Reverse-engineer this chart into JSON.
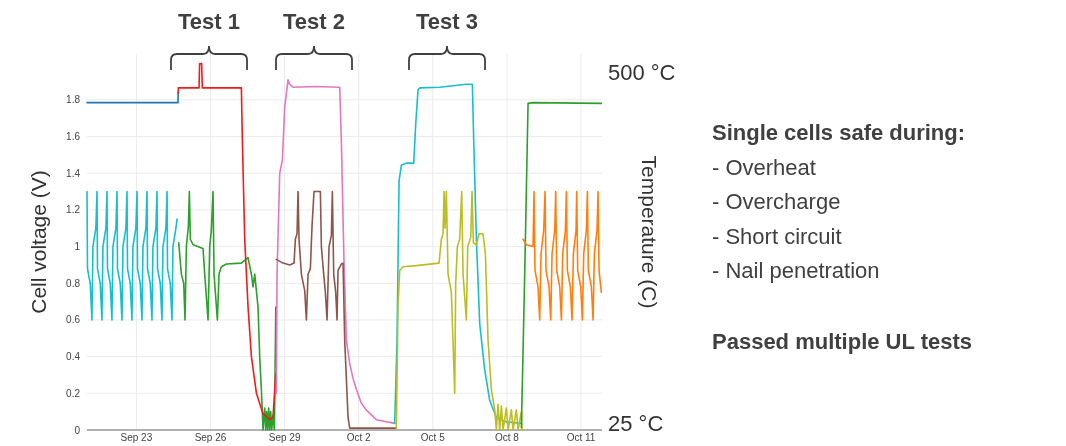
{
  "chart_data": {
    "type": "line",
    "ylabel": "Cell voltage (V)",
    "y2label": "Temperature (C)",
    "xlim": [
      "--09-21",
      "--10-11T20:24"
    ],
    "xticks": [
      {
        "value": "--09-23",
        "label": "Sep 23"
      },
      {
        "value": "--09-26",
        "label": "Sep 26"
      },
      {
        "value": "--09-29",
        "label": "Sep 29"
      },
      {
        "value": "--10-02",
        "label": "Oct 2"
      },
      {
        "value": "--10-05",
        "label": "Oct 5"
      },
      {
        "value": "--10-08",
        "label": "Oct 8"
      },
      {
        "value": "--10-11",
        "label": "Oct 11"
      }
    ],
    "ylim": [
      0,
      2.05
    ],
    "yticks": [
      0,
      0.2,
      0.4,
      0.6,
      0.8,
      1,
      1.2,
      1.4,
      1.6,
      1.8
    ],
    "y2lim": [
      15,
      525
    ],
    "y2ticks": [
      {
        "value": 500,
        "label": "500 °C"
      },
      {
        "value": 25,
        "label": "25 °C"
      }
    ],
    "grid": true,
    "series": [
      {
        "color": "#17becf",
        "x": [
          "--09-21T00:00",
          "--09-21T00:29",
          "--09-21T03:07",
          "--09-21T04:48",
          "--09-21T05:46",
          "--09-21T08:38",
          "--09-21T09:43",
          "--09-21T10:12",
          "--09-21T12:50",
          "--09-21T14:31",
          "--09-21T15:29",
          "--09-21T18:22",
          "--09-21T19:26",
          "--09-21T19:55",
          "--09-21T22:34",
          "--09-22T00:14",
          "--09-22T01:12",
          "--09-22T04:05",
          "--09-22T05:10",
          "--09-22T05:38",
          "--09-22T08:17",
          "--09-22T09:58",
          "--09-22T10:55",
          "--09-22T13:48",
          "--09-22T14:53",
          "--09-22T15:22",
          "--09-22T18:00",
          "--09-22T19:41",
          "--09-22T20:38",
          "--09-22T23:31",
          "--09-23T00:36",
          "--09-23T01:05",
          "--09-23T03:43",
          "--09-23T05:24",
          "--09-23T06:22",
          "--09-23T09:14",
          "--09-23T10:19",
          "--09-23T10:48",
          "--09-23T13:26",
          "--09-23T15:07",
          "--09-23T16:05",
          "--09-23T18:58",
          "--09-23T20:02",
          "--09-23T20:31",
          "--09-23T23:10",
          "--09-24T00:50",
          "--09-24T01:48",
          "--09-24T04:41",
          "--09-24T05:46",
          "--09-24T06:14",
          "--09-24T08:53",
          "--09-24T10:34",
          "--09-24T11:31",
          "--09-24T14:24",
          "--09-24T15:29"
        ],
        "values": [
          1.3,
          0.88,
          0.8,
          0.6,
          1.0,
          1.1,
          1.3,
          0.88,
          0.8,
          0.6,
          1.0,
          1.1,
          1.3,
          0.88,
          0.8,
          0.6,
          1.0,
          1.1,
          1.3,
          0.88,
          0.8,
          0.6,
          1.0,
          1.1,
          1.3,
          0.88,
          0.8,
          0.6,
          1.0,
          1.1,
          1.3,
          0.88,
          0.8,
          0.6,
          1.0,
          1.1,
          1.3,
          0.88,
          0.8,
          0.6,
          1.0,
          1.1,
          1.3,
          0.88,
          0.8,
          0.6,
          1.0,
          1.1,
          1.3,
          0.88,
          0.8,
          0.6,
          1.0,
          1.1,
          1.15
        ]
      },
      {
        "color": "#2ca02c",
        "x": [
          "--09-24T17:07",
          "--09-24T19:42",
          "--09-24T21:58",
          "--09-24T23:15",
          "--09-25T00:33",
          "--09-25T02:30",
          "--09-25T03:27",
          "--09-25T04:26",
          "--09-25T07:02",
          "--09-25T16:45",
          "--09-25T18:22",
          "--09-25T21:36",
          "--09-25T23:14",
          "--09-26T00:50",
          "--09-26T02:27",
          "--09-26T03:26",
          "--09-26T06:40",
          "--09-26T08:17",
          "--09-26T10:34",
          "--09-26T15:26",
          "--09-27T06:00",
          "--09-27T12:29",
          "--09-27T15:43",
          "--09-27T17:20",
          "--09-27T18:58",
          "--09-27T20:34",
          "--09-27T22:11",
          "--09-27T23:48",
          "--09-28T01:26",
          "--09-28T03:03",
          "--09-28T04:39",
          "--09-28T05:38",
          "--09-28T06:36",
          "--09-28T07:35",
          "--09-28T08:33",
          "--09-28T09:32",
          "--09-28T10:29",
          "--09-28T11:28",
          "--09-28T12:46",
          "--09-28T14:04",
          "--09-28T15:27"
        ],
        "values": [
          1.02,
          0.85,
          0.8,
          0.6,
          1.0,
          1.11,
          1.3,
          1.04,
          1.01,
          0.99,
          0.85,
          0.6,
          1.0,
          1.09,
          1.3,
          0.85,
          0.6,
          0.85,
          0.89,
          0.905,
          0.91,
          0.94,
          0.85,
          0.78,
          0.85,
          0.76,
          0.67,
          0.4,
          0.22,
          0,
          0.12,
          0,
          0.1,
          0,
          0.12,
          0,
          0.1,
          0,
          0.08,
          0,
          0.67
        ]
      },
      {
        "color": "#1f77b4",
        "axis": "y2",
        "x": [
          "--09-21T00:00",
          "--09-24T16:28",
          "--09-24T16:34"
        ],
        "values": [
          459,
          459,
          472
        ]
      },
      {
        "color": "#ee1c1c",
        "axis": "y2",
        "x": [
          "--09-24T16:34",
          "--09-24T16:48",
          "--09-25T12:52",
          "--09-25T13:26",
          "--09-25T15:22",
          "--09-25T16:05",
          "--09-27T06:00",
          "--09-27T06:58",
          "--09-27T09:14",
          "--09-27T12:29",
          "--09-27T15:43",
          "--09-27T20:36",
          "--09-28T03:03",
          "--09-28T09:32",
          "--09-28T12:46",
          "--09-28T15:27"
        ],
        "values": [
          472,
          479,
          479,
          512,
          512,
          479,
          479,
          408,
          274,
          182,
          115,
          65,
          37,
          29,
          33,
          92
        ]
      },
      {
        "color": "#e377c2",
        "axis": "y2",
        "x": [
          "--09-28T16:00",
          "--09-28T16:39",
          "--09-28T19:15",
          "--09-28T21:50",
          "--09-29T00:06",
          "--09-29T03:20",
          "--09-29T04:48",
          "--09-29T08:11",
          "--09-30T07:12",
          "--10-01T05:33",
          "--10-01T07:09",
          "--10-01T09:36",
          "--10-01T12:01",
          "--10-01T15:16",
          "--10-01T18:29",
          "--10-01T21:45",
          "--10-02T02:24",
          "--10-02T07:26",
          "--10-02T17:10",
          "--10-03T10:59"
        ],
        "values": [
          65,
          226,
          363,
          381,
          453,
          490,
          484,
          480,
          481,
          480,
          408,
          250,
          137,
          105,
          85,
          70,
          52,
          42,
          29,
          24
        ]
      },
      {
        "color": "#8c564b",
        "x": [
          "--09-28T16:00",
          "--09-28T22:28",
          "--09-29T04:58",
          "--09-29T09:10",
          "--09-29T10:28",
          "--09-29T12:04",
          "--09-29T13:03",
          "--09-29T14:01",
          "--09-29T16:18",
          "--09-29T19:32",
          "--09-29T21:09",
          "--09-29T22:47",
          "--09-30T01:02",
          "--09-30T02:38",
          "--09-30T04:36",
          "--09-30T10:45",
          "--09-30T11:44",
          "--09-30T13:21",
          "--09-30T15:37",
          "--09-30T17:14",
          "--09-30T19:11",
          "--09-30T21:26",
          "--09-30T22:25",
          "--09-30T23:43",
          "--10-01T01:39",
          "--10-01T02:57",
          "--10-01T03:55",
          "--10-01T07:09",
          "--10-01T08:47",
          "--10-01T10:23",
          "--10-01T13:38",
          "--10-01T15:16",
          "--10-03T12:36"
        ],
        "values": [
          0.93,
          0.91,
          0.9,
          0.91,
          1.04,
          1.07,
          1.3,
          1.04,
          0.85,
          0.76,
          0.6,
          0.85,
          0.88,
          1.11,
          1.3,
          1.3,
          1.0,
          0.89,
          0.75,
          0.6,
          1.0,
          1.06,
          1.3,
          0.85,
          0.75,
          0.6,
          0.87,
          0.905,
          0.91,
          0.49,
          0.07,
          0.01,
          0.01
        ]
      },
      {
        "color": "#17becf",
        "axis": "y2",
        "x": [
          "--10-03T10:59",
          "--10-03T13:15",
          "--10-03T15:12",
          "--10-03T17:27",
          "--10-03T22:19",
          "--10-04T05:27",
          "--10-04T07:24",
          "--10-04T09:39",
          "--10-04T11:17",
          "--10-05T06:42",
          "--10-06T08:37",
          "--10-06T14:27",
          "--10-06T15:45",
          "--10-06T18:20",
          "--10-06T21:35",
          "--10-07T02:25",
          "--10-07T07:18",
          "--10-07T13:47",
          "--10-07T23:30",
          "--10-08T14:04"
        ],
        "values": [
          24,
          137,
          353,
          374,
          377,
          377,
          430,
          476,
          479,
          480,
          484,
          484,
          408,
          274,
          159,
          97,
          55,
          32,
          26,
          24
        ]
      },
      {
        "color": "#bcbd22",
        "x": [
          "--10-03T12:36",
          "--10-03T14:12",
          "--10-03T15:50",
          "--10-03T19:05",
          "--10-04T08:02",
          "--10-05T06:03",
          "--10-05T08:20",
          "--10-05T09:56",
          "--10-05T10:55",
          "--10-05T11:53",
          "--10-05T13:11",
          "--10-05T14:48",
          "--10-05T18:03",
          "--10-05T21:17",
          "--10-05T22:15",
          "--10-05T23:53",
          "--10-06T02:08",
          "--10-06T04:05",
          "--10-06T05:23",
          "--10-06T08:37",
          "--10-06T09:55",
          "--10-06T12:50",
          "--10-06T14:08",
          "--10-06T15:26",
          "--10-06T18:20",
          "--10-06T20:56",
          "--10-07T00:49",
          "--10-07T03:06",
          "--10-07T05:41",
          "--10-07T08:56",
          "--10-07T12:10",
          "--10-07T13:47",
          "--10-07T15:24",
          "--10-07T17:01",
          "--10-07T18:39",
          "--10-07T20:15",
          "--10-07T23:30",
          "--10-08T01:08",
          "--10-08T04:22",
          "--10-08T05:59",
          "--10-08T09:13",
          "--10-08T10:51",
          "--10-08T14:04",
          "--10-08T14:43"
        ],
        "values": [
          0.01,
          0.67,
          0.87,
          0.89,
          0.896,
          0.91,
          1.04,
          1.07,
          1.3,
          1.1,
          1.3,
          0.85,
          0.75,
          0.2,
          0.8,
          1.0,
          1.04,
          1.3,
          0.85,
          0.6,
          1.0,
          1.05,
          1.3,
          1.02,
          1.01,
          1.07,
          1.07,
          0.96,
          0.49,
          0.22,
          0.11,
          0,
          0.14,
          0,
          0.13,
          0,
          0.12,
          0,
          0.11,
          0,
          0.11,
          0,
          0.1,
          0
        ]
      },
      {
        "color": "#2ca02c",
        "axis": "y2",
        "x": [
          "--10-08T14:04",
          "--10-08T17:18",
          "--10-08T20:33",
          "--10-09T01:24",
          "--10-11T19:48"
        ],
        "values": [
          18,
          226,
          458,
          459,
          458
        ]
      },
      {
        "color": "#ff7f0e",
        "x": [
          "--10-08T15:40",
          "--10-08T18:55",
          "--10-09T01:24",
          "--10-09T02:21",
          "--10-09T03:19",
          "--10-09T06:14",
          "--10-09T07:52",
          "--10-09T09:10",
          "--10-09T11:46",
          "--10-09T13:03",
          "--10-09T14:01",
          "--10-09T16:57",
          "--10-09T18:35",
          "--10-09T19:52",
          "--10-09T22:28",
          "--10-09T23:25",
          "--10-10T00:23",
          "--10-10T03:19",
          "--10-10T04:57",
          "--10-10T06:14",
          "--10-10T08:50",
          "--10-10T09:48",
          "--10-10T10:45",
          "--10-10T13:41",
          "--10-10T15:19",
          "--10-10T16:36",
          "--10-10T19:12",
          "--10-10T19:49",
          "--10-10T20:47",
          "--10-10T23:43",
          "--10-11T01:21",
          "--10-11T02:38",
          "--10-11T05:14",
          "--10-11T06:12",
          "--10-11T07:09",
          "--10-11T10:05",
          "--10-11T11:43",
          "--10-11T13:00",
          "--10-11T15:36",
          "--10-11T16:34",
          "--10-11T17:31",
          "--10-11T19:48"
        ],
        "values": [
          1.04,
          1.01,
          1.0,
          1.3,
          0.87,
          0.78,
          0.6,
          0.96,
          1.09,
          1.3,
          0.87,
          0.78,
          0.6,
          0.96,
          1.09,
          1.3,
          0.87,
          0.78,
          0.6,
          0.96,
          1.09,
          1.3,
          0.87,
          0.78,
          0.6,
          0.96,
          1.09,
          1.3,
          0.87,
          0.78,
          0.6,
          0.96,
          1.09,
          1.3,
          0.87,
          0.78,
          0.6,
          0.96,
          1.09,
          1.3,
          0.87,
          0.75
        ]
      }
    ],
    "annotations": [
      "Test 1",
      "Test 2",
      "Test 3",
      "Single cells safe during:",
      "- Overheat",
      "- Overcharge",
      "- Short circuit",
      "- Nail penetration",
      "Passed multiple UL tests"
    ]
  }
}
